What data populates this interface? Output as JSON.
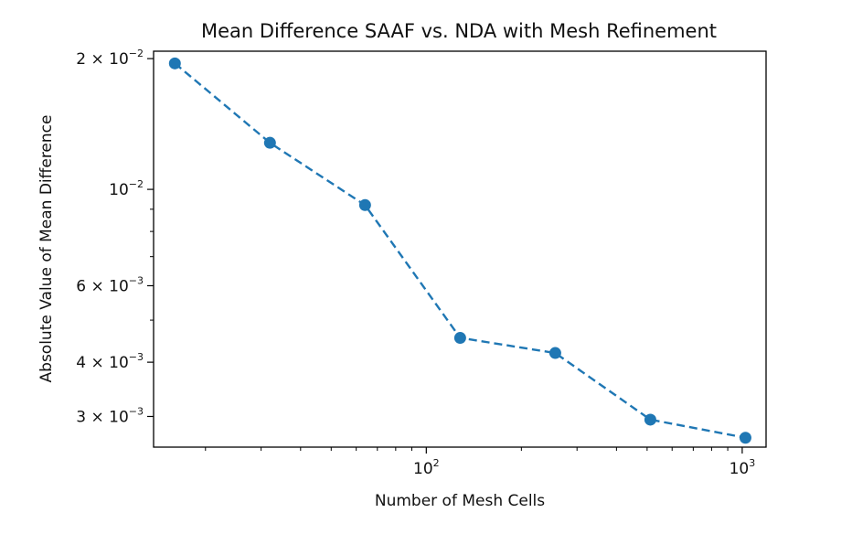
{
  "chart_data": {
    "type": "line",
    "title": "Mean Difference SAAF vs. NDA with Mesh Refinement",
    "xlabel": "Number of Mesh Cells",
    "ylabel": "Absolute Value of Mean Difference",
    "x_scale": "log",
    "y_scale": "log",
    "xlim": [
      13.7,
      1190
    ],
    "ylim": [
      0.00255,
      0.0208
    ],
    "grid": false,
    "line_style": "dashed",
    "marker": "circle",
    "color": "#1f77b4",
    "series": [
      {
        "x": [
          16,
          32,
          64,
          128,
          256,
          512,
          1024
        ],
        "y": [
          0.0195,
          0.0128,
          0.0092,
          0.00455,
          0.0042,
          0.00295,
          0.00268
        ]
      }
    ],
    "x_ticks": [
      {
        "value": 100,
        "base": "10",
        "exp": "2"
      },
      {
        "value": 1000,
        "base": "10",
        "exp": "3"
      }
    ],
    "y_ticks": [
      {
        "value": 0.02,
        "mant": "2",
        "exp": "−2"
      },
      {
        "value": 0.01,
        "mant": "",
        "exp": "−2"
      },
      {
        "value": 0.006,
        "mant": "6",
        "exp": "−3"
      },
      {
        "value": 0.004,
        "mant": "4",
        "exp": "−3"
      },
      {
        "value": 0.003,
        "mant": "3",
        "exp": "−3"
      }
    ]
  }
}
